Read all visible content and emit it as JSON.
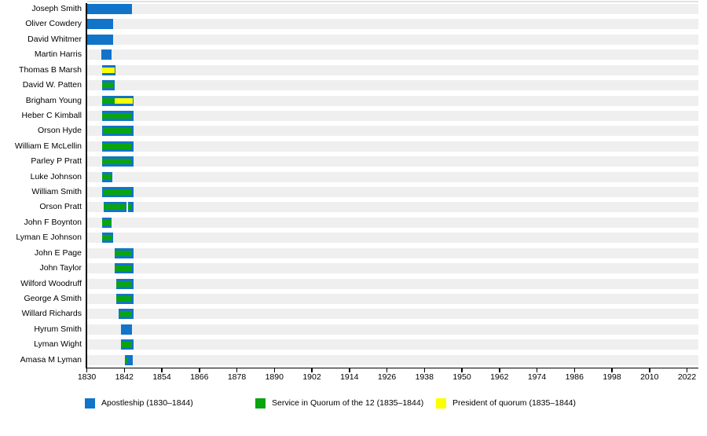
{
  "chart_data": {
    "type": "timeline",
    "x_axis": {
      "start_year": 1830,
      "end_year": 2025.5,
      "ticks": [
        1830,
        1842,
        1854,
        1866,
        1878,
        1890,
        1902,
        1914,
        1926,
        1938,
        1950,
        1962,
        1974,
        1986,
        1998,
        2010,
        2022
      ]
    },
    "colors": {
      "apostleship": "#1174c9",
      "quorum": "#0aa40f",
      "president": "#fcff00",
      "track": "#efefef"
    },
    "legend": [
      {
        "key": "apostleship",
        "label": "Apostleship (1830–1844)"
      },
      {
        "key": "quorum",
        "label": "Service in Quorum of the 12 (1835–1844)"
      },
      {
        "key": "president",
        "label": "President of quorum (1835–1844)"
      }
    ],
    "rows": [
      {
        "name": "Joseph Smith",
        "segments": [
          {
            "start": 1830.0,
            "end": 1844.5
          }
        ],
        "overlays": []
      },
      {
        "name": "Oliver Cowdery",
        "segments": [
          {
            "start": 1830.0,
            "end": 1838.4
          }
        ],
        "overlays": []
      },
      {
        "name": "David Whitmer",
        "segments": [
          {
            "start": 1830.0,
            "end": 1838.4
          }
        ],
        "overlays": []
      },
      {
        "name": "Martin Harris",
        "segments": [
          {
            "start": 1834.6,
            "end": 1837.9
          }
        ],
        "overlays": []
      },
      {
        "name": "Thomas B Marsh",
        "segments": [
          {
            "start": 1834.9,
            "end": 1839.2
          }
        ],
        "overlays": [
          {
            "start": 1835.0,
            "end": 1838.9,
            "type": "president"
          }
        ]
      },
      {
        "name": "David W. Patten",
        "segments": [
          {
            "start": 1834.9,
            "end": 1838.9
          }
        ],
        "overlays": [
          {
            "start": 1835.0,
            "end": 1838.6,
            "type": "quorum"
          }
        ]
      },
      {
        "name": "Brigham Young",
        "segments": [
          {
            "start": 1834.9,
            "end": 1845.0
          }
        ],
        "overlays": [
          {
            "start": 1835.0,
            "end": 1838.9,
            "type": "quorum"
          },
          {
            "start": 1838.9,
            "end": 1844.6,
            "type": "president"
          }
        ]
      },
      {
        "name": "Heber C Kimball",
        "segments": [
          {
            "start": 1834.9,
            "end": 1845.0
          }
        ],
        "overlays": [
          {
            "start": 1835.0,
            "end": 1844.5,
            "type": "quorum"
          }
        ]
      },
      {
        "name": "Orson Hyde",
        "segments": [
          {
            "start": 1834.9,
            "end": 1845.0
          }
        ],
        "overlays": [
          {
            "start": 1835.1,
            "end": 1844.5,
            "type": "quorum"
          }
        ]
      },
      {
        "name": "William E McLellin",
        "segments": [
          {
            "start": 1834.8,
            "end": 1845.0
          }
        ],
        "overlays": [
          {
            "start": 1834.9,
            "end": 1844.5,
            "type": "quorum"
          }
        ]
      },
      {
        "name": "Parley P Pratt",
        "segments": [
          {
            "start": 1834.9,
            "end": 1844.9
          }
        ],
        "overlays": [
          {
            "start": 1835.0,
            "end": 1844.4,
            "type": "quorum"
          }
        ]
      },
      {
        "name": "Luke Johnson",
        "segments": [
          {
            "start": 1834.9,
            "end": 1838.1
          }
        ],
        "overlays": [
          {
            "start": 1835.0,
            "end": 1837.8,
            "type": "quorum"
          }
        ]
      },
      {
        "name": "William Smith",
        "segments": [
          {
            "start": 1835.0,
            "end": 1845.0
          }
        ],
        "overlays": [
          {
            "start": 1835.2,
            "end": 1844.4,
            "type": "quorum"
          }
        ]
      },
      {
        "name": "Orson Pratt",
        "segments": [
          {
            "start": 1835.3,
            "end": 1842.6
          },
          {
            "start": 1843.2,
            "end": 1845.0
          }
        ],
        "overlays": [
          {
            "start": 1835.4,
            "end": 1842.5,
            "type": "quorum"
          },
          {
            "start": 1843.3,
            "end": 1844.5,
            "type": "quorum"
          }
        ]
      },
      {
        "name": "John F Boynton",
        "segments": [
          {
            "start": 1834.9,
            "end": 1838.0
          }
        ],
        "overlays": [
          {
            "start": 1835.0,
            "end": 1837.8,
            "type": "quorum"
          }
        ]
      },
      {
        "name": "Lyman E Johnson",
        "segments": [
          {
            "start": 1834.9,
            "end": 1838.4
          }
        ],
        "overlays": [
          {
            "start": 1835.0,
            "end": 1838.1,
            "type": "quorum"
          }
        ]
      },
      {
        "name": "John E Page",
        "segments": [
          {
            "start": 1838.8,
            "end": 1845.0
          }
        ],
        "overlays": [
          {
            "start": 1839.0,
            "end": 1844.4,
            "type": "quorum"
          }
        ]
      },
      {
        "name": "John Taylor",
        "segments": [
          {
            "start": 1838.9,
            "end": 1845.0
          }
        ],
        "overlays": [
          {
            "start": 1839.0,
            "end": 1844.4,
            "type": "quorum"
          }
        ]
      },
      {
        "name": "Wilford Woodruff",
        "segments": [
          {
            "start": 1839.3,
            "end": 1845.0
          }
        ],
        "overlays": [
          {
            "start": 1839.4,
            "end": 1844.4,
            "type": "quorum"
          }
        ]
      },
      {
        "name": "George A Smith",
        "segments": [
          {
            "start": 1839.3,
            "end": 1844.9
          }
        ],
        "overlays": [
          {
            "start": 1839.4,
            "end": 1844.3,
            "type": "quorum"
          }
        ]
      },
      {
        "name": "Willard Richards",
        "segments": [
          {
            "start": 1840.3,
            "end": 1845.0
          }
        ],
        "overlays": [
          {
            "start": 1840.4,
            "end": 1844.4,
            "type": "quorum"
          }
        ]
      },
      {
        "name": "Hyrum Smith",
        "segments": [
          {
            "start": 1840.9,
            "end": 1844.5
          }
        ],
        "overlays": []
      },
      {
        "name": "Lyman Wight",
        "segments": [
          {
            "start": 1840.9,
            "end": 1844.9
          }
        ],
        "overlays": [
          {
            "start": 1841.1,
            "end": 1844.4,
            "type": "quorum"
          }
        ]
      },
      {
        "name": "Amasa M Lyman",
        "segments": [
          {
            "start": 1842.2,
            "end": 1844.7
          }
        ],
        "overlays": [
          {
            "start": 1842.3,
            "end": 1843.1,
            "type": "quorum"
          }
        ]
      }
    ]
  }
}
